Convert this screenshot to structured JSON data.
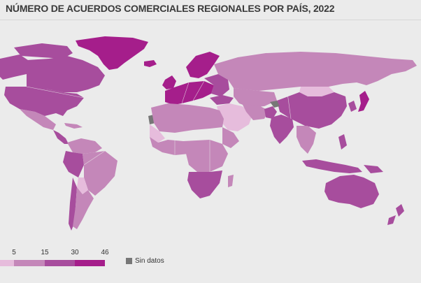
{
  "title": "NÚMERO DE ACUERDOS COMERCIALES REGIONALES POR PAÍS, 2022",
  "legend": {
    "ticks": [
      "5",
      "15",
      "30",
      "46"
    ],
    "colors": [
      "#e6bcdc",
      "#c487b9",
      "#a74d9d",
      "#a51e8b"
    ],
    "nodata_label": "Sin datos",
    "nodata_color": "#777777"
  },
  "map_colors": {
    "ocean": "#ebebeb",
    "level_1": "#e6bcdc",
    "level_2": "#c487b9",
    "level_3": "#a74d9d",
    "level_4": "#a51e8b",
    "nodata": "#777777"
  }
}
